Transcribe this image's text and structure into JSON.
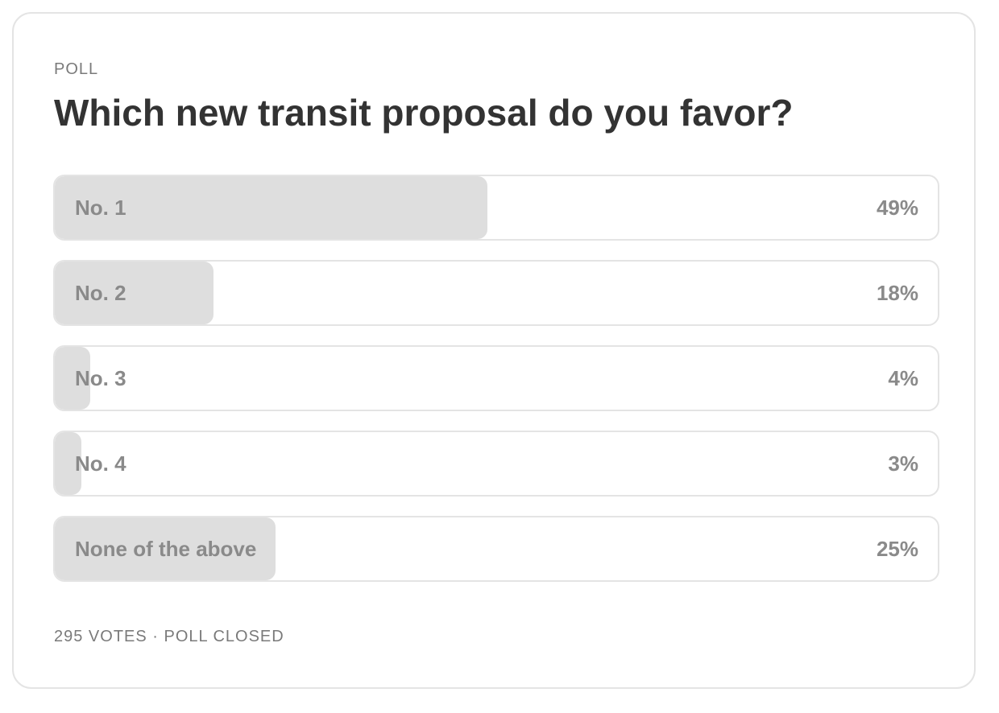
{
  "poll": {
    "kicker": "POLL",
    "question": "Which new transit proposal do you favor?",
    "options": [
      {
        "label": "No. 1",
        "percent_label": "49%",
        "percent": 49
      },
      {
        "label": "No. 2",
        "percent_label": "18%",
        "percent": 18
      },
      {
        "label": "No. 3",
        "percent_label": "4%",
        "percent": 4
      },
      {
        "label": "No. 4",
        "percent_label": "3%",
        "percent": 3
      },
      {
        "label": "None of the above",
        "percent_label": "25%",
        "percent": 25
      }
    ],
    "footer": "295 VOTES · POLL CLOSED"
  },
  "colors": {
    "card_border": "#e4e4e4",
    "bar_fill": "#dedede",
    "muted_text": "#8a8a8a",
    "title_text": "#333333"
  }
}
